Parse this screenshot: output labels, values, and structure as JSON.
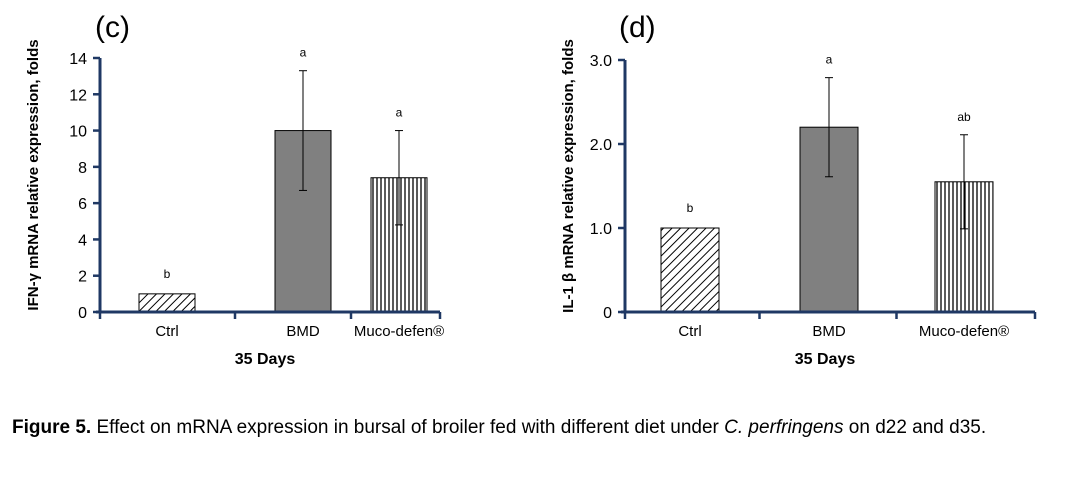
{
  "figure": {
    "caption_label": "Figure 5.",
    "caption_text_1": " Effect on mRNA expression in bursal of broiler fed with different diet under ",
    "caption_italic": "C. perfringens",
    "caption_text_2": " on d22 and d35."
  },
  "chart_data": [
    {
      "type": "bar",
      "panel_label": "(c)",
      "categories": [
        "Ctrl",
        "BMD",
        "Muco-defen®"
      ],
      "values": [
        1.0,
        10.0,
        7.4
      ],
      "error": [
        0.0,
        3.3,
        2.6
      ],
      "letters": [
        "b",
        "a",
        "a"
      ],
      "patterns": [
        "diagonal-hatch",
        "solid-gray",
        "vertical-stripes"
      ],
      "xlabel": "35 Days",
      "ylabel": "IFN-γ mRNA relative expression, folds",
      "ylim": [
        0,
        14
      ],
      "yticks": [
        "0",
        "2",
        "4",
        "6",
        "8",
        "10",
        "12",
        "14"
      ],
      "tick_values": [
        0,
        2,
        4,
        6,
        8,
        10,
        12,
        14
      ],
      "grid": false,
      "colors": {
        "axis": "#1f3864",
        "bar_fill": "#808080",
        "outline": "#000000"
      }
    },
    {
      "type": "bar",
      "panel_label": "(d)",
      "categories": [
        "Ctrl",
        "BMD",
        "Muco-defen®"
      ],
      "values": [
        1.0,
        2.2,
        1.55
      ],
      "error": [
        0.0,
        0.59,
        0.56
      ],
      "letters": [
        "b",
        "a",
        "ab"
      ],
      "patterns": [
        "diagonal-hatch",
        "solid-gray",
        "vertical-stripes"
      ],
      "xlabel": "35 Days",
      "ylabel": "IL-1 β mRNA relative expression, folds",
      "ylim": [
        0,
        3
      ],
      "yticks": [
        "0",
        "1.0",
        "2.0",
        "3.0"
      ],
      "tick_values": [
        0,
        1,
        2,
        3
      ],
      "grid": false,
      "colors": {
        "axis": "#1f3864",
        "bar_fill": "#808080",
        "outline": "#000000"
      }
    }
  ]
}
